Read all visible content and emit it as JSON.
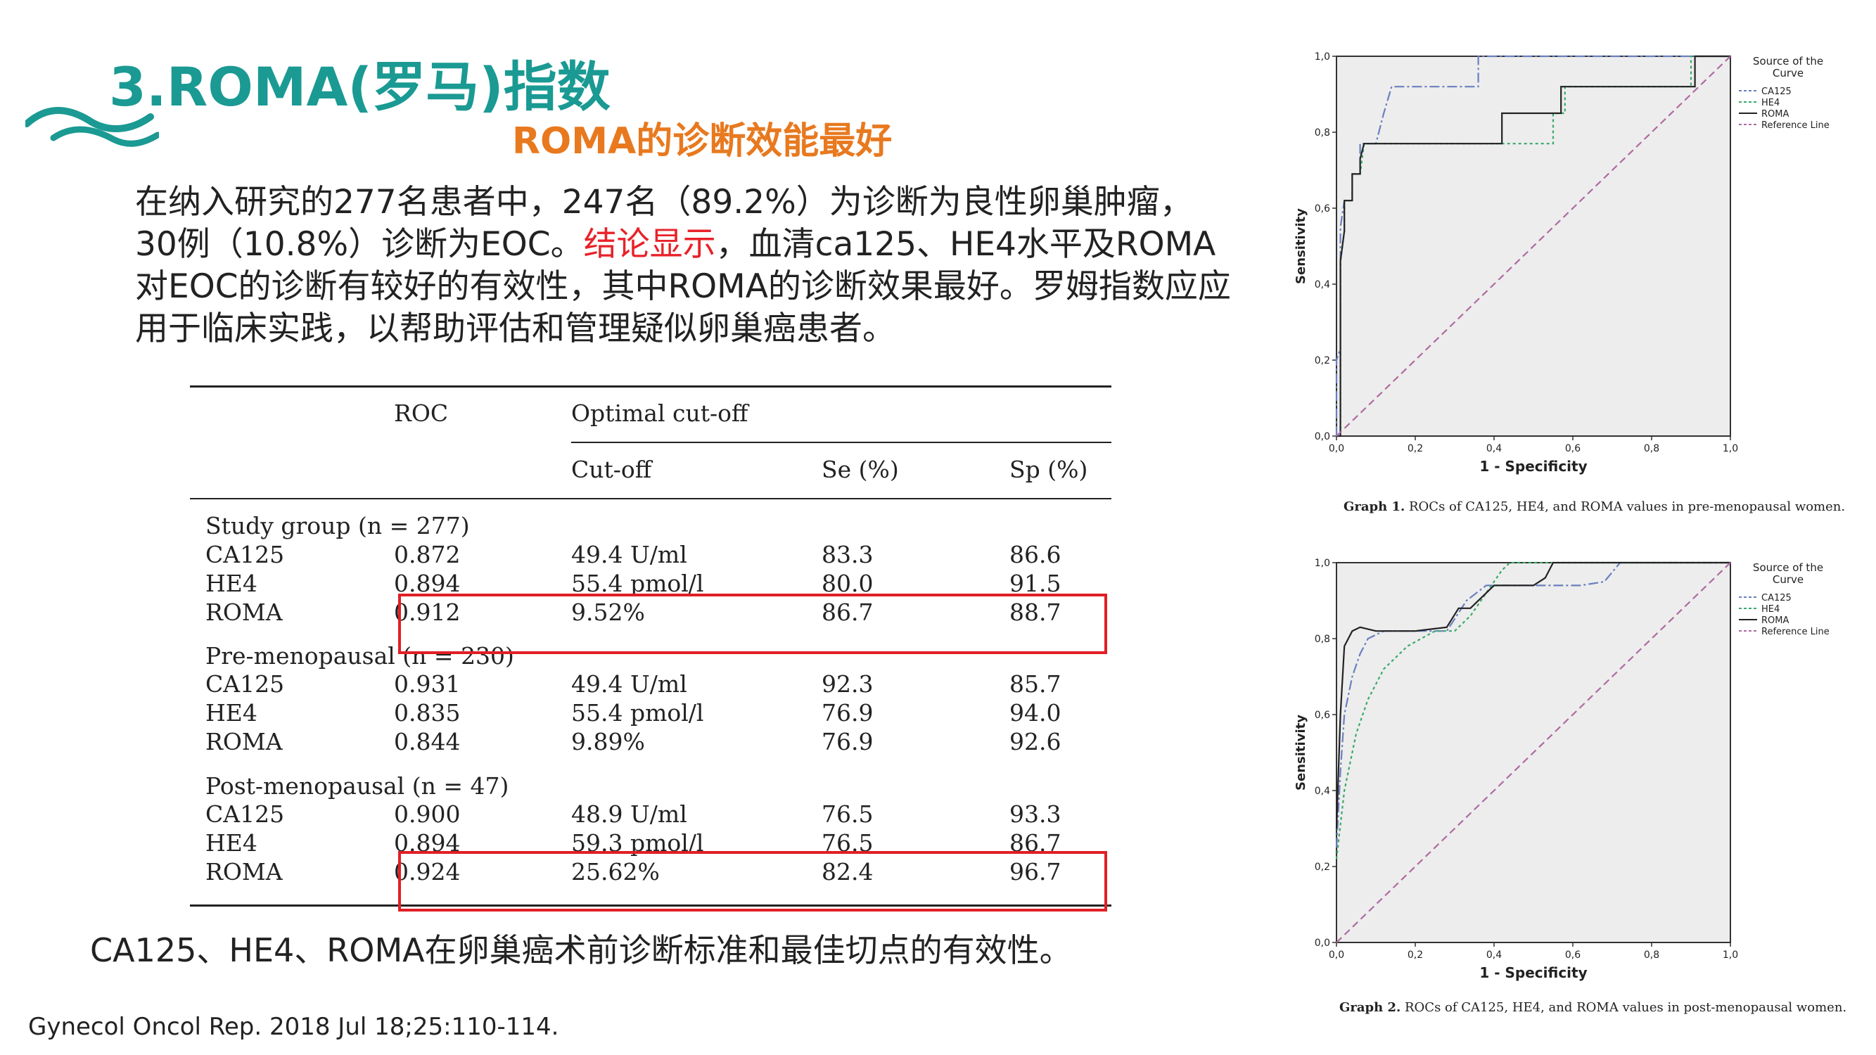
{
  "title": "3.ROMA(罗马)指数",
  "subtitle": "ROMA的诊断效能最好",
  "paragraph": {
    "part1": "在纳入研究的277名患者中，247名（89.2%）为诊断为良性卵巢肿瘤，30例（10.8%）诊断为EOC。",
    "highlight": "结论显示",
    "part2": "，血清ca125、HE4水平及ROMA对EOC的诊断有较好的有效性，其中ROMA的诊断效果最好。罗姆指数应应用于临床实践，以帮助评估和管理疑似卵巢癌患者。"
  },
  "table": {
    "headers": {
      "roc": "ROC",
      "optimal": "Optimal cut-off",
      "cutoff": "Cut-off",
      "se": "Se (%)",
      "sp": "Sp (%)"
    },
    "groups": [
      {
        "label": "Study group (n = 277)",
        "rows": [
          {
            "name": "CA125",
            "roc": "0.872",
            "cutoff": "49.4 U/ml",
            "se": "83.3",
            "sp": "86.6"
          },
          {
            "name": "HE4",
            "roc": "0.894",
            "cutoff": "55.4 pmol/l",
            "se": "80.0",
            "sp": "91.5"
          },
          {
            "name": "ROMA",
            "roc": "0.912",
            "cutoff": "9.52%",
            "se": "86.7",
            "sp": "88.7"
          }
        ]
      },
      {
        "label": "Pre-menopausal (n = 230)",
        "rows": [
          {
            "name": "CA125",
            "roc": "0.931",
            "cutoff": "49.4 U/ml",
            "se": "92.3",
            "sp": "85.7"
          },
          {
            "name": "HE4",
            "roc": "0.835",
            "cutoff": "55.4 pmol/l",
            "se": "76.9",
            "sp": "94.0"
          },
          {
            "name": "ROMA",
            "roc": "0.844",
            "cutoff": "9.89%",
            "se": "76.9",
            "sp": "92.6"
          }
        ]
      },
      {
        "label": "Post-menopausal (n = 47)",
        "rows": [
          {
            "name": "CA125",
            "roc": "0.900",
            "cutoff": "48.9 U/ml",
            "se": "76.5",
            "sp": "93.3"
          },
          {
            "name": "HE4",
            "roc": "0.894",
            "cutoff": "59.3 pmol/l",
            "se": "76.5",
            "sp": "86.7"
          },
          {
            "name": "ROMA",
            "roc": "0.924",
            "cutoff": "25.62%",
            "se": "82.4",
            "sp": "96.7"
          }
        ]
      }
    ]
  },
  "caption": "CA125、HE4、ROMA在卵巢癌术前诊断标准和最佳切点的有效性。",
  "citation": "Gynecol Oncol Rep. 2018 Jul 18;25:110-114.",
  "colors": {
    "teal": "#1a9a93",
    "orange": "#e8791f",
    "red": "#e01f26"
  },
  "chart_data": [
    {
      "type": "line",
      "caption_bold": "Graph 1.",
      "caption_text": "ROCs of CA125, HE4, and ROMA values in pre-menopausal women.",
      "xlabel": "1 - Specificity",
      "ylabel": "Sensitivity",
      "legend_title": "Source of the Curve",
      "legend": [
        "CA125",
        "HE4",
        "ROMA",
        "Reference Line"
      ],
      "xticks": [
        "0,0",
        "0,2",
        "0,4",
        "0,6",
        "0,8",
        "1,0"
      ],
      "yticks": [
        "0,0",
        "0,2",
        "0,4",
        "0,6",
        "0,8",
        "1,0"
      ],
      "xlim": [
        0,
        1
      ],
      "ylim": [
        0,
        1
      ],
      "series": [
        {
          "name": "CA125",
          "color": "#6a7fc0",
          "dash": "14 4 3 4",
          "points": [
            [
              0,
              0
            ],
            [
              0.0,
              0.2
            ],
            [
              0.01,
              0.23
            ],
            [
              0.01,
              0.55
            ],
            [
              0.02,
              0.62
            ],
            [
              0.04,
              0.62
            ],
            [
              0.04,
              0.69
            ],
            [
              0.06,
              0.69
            ],
            [
              0.06,
              0.77
            ],
            [
              0.1,
              0.77
            ],
            [
              0.12,
              0.85
            ],
            [
              0.14,
              0.92
            ],
            [
              0.2,
              0.92
            ],
            [
              0.28,
              0.92
            ],
            [
              0.36,
              0.92
            ],
            [
              0.36,
              1.0
            ],
            [
              1.0,
              1.0
            ]
          ]
        },
        {
          "name": "HE4",
          "color": "#3aa86a",
          "dash": "4 4",
          "points": [
            [
              0,
              0
            ],
            [
              0.01,
              0.0
            ],
            [
              0.01,
              0.46
            ],
            [
              0.02,
              0.54
            ],
            [
              0.02,
              0.62
            ],
            [
              0.04,
              0.62
            ],
            [
              0.04,
              0.69
            ],
            [
              0.06,
              0.69
            ],
            [
              0.07,
              0.77
            ],
            [
              0.5,
              0.77
            ],
            [
              0.55,
              0.77
            ],
            [
              0.55,
              0.85
            ],
            [
              0.58,
              0.85
            ],
            [
              0.58,
              0.92
            ],
            [
              0.9,
              0.92
            ],
            [
              0.9,
              1.0
            ],
            [
              1.0,
              1.0
            ]
          ]
        },
        {
          "name": "ROMA",
          "color": "#222222",
          "dash": "",
          "points": [
            [
              0,
              0
            ],
            [
              0.01,
              0.0
            ],
            [
              0.01,
              0.46
            ],
            [
              0.02,
              0.54
            ],
            [
              0.02,
              0.62
            ],
            [
              0.04,
              0.62
            ],
            [
              0.04,
              0.69
            ],
            [
              0.06,
              0.69
            ],
            [
              0.06,
              0.73
            ],
            [
              0.07,
              0.77
            ],
            [
              0.42,
              0.77
            ],
            [
              0.42,
              0.85
            ],
            [
              0.57,
              0.85
            ],
            [
              0.57,
              0.92
            ],
            [
              0.91,
              0.92
            ],
            [
              0.91,
              1.0
            ],
            [
              1.0,
              1.0
            ]
          ]
        },
        {
          "name": "Reference Line",
          "color": "#b06aa0",
          "dash": "10 6",
          "points": [
            [
              0,
              0
            ],
            [
              1,
              1
            ]
          ]
        }
      ]
    },
    {
      "type": "line",
      "caption_bold": "Graph 2.",
      "caption_text": "ROCs of CA125, HE4, and ROMA values in post-menopausal women.",
      "xlabel": "1 - Specificity",
      "ylabel": "Sensitivity",
      "legend_title": "Source of the Curve",
      "legend": [
        "CA125",
        "HE4",
        "ROMA",
        "Reference Line"
      ],
      "xticks": [
        "0,0",
        "0,2",
        "0,4",
        "0,6",
        "0,8",
        "1,0"
      ],
      "yticks": [
        "0,0",
        "0,2",
        "0,4",
        "0,6",
        "0,8",
        "1,0"
      ],
      "xlim": [
        0,
        1
      ],
      "ylim": [
        0,
        1
      ],
      "series": [
        {
          "name": "CA125",
          "color": "#6a7fc0",
          "dash": "14 4 3 4",
          "points": [
            [
              0,
              0.25
            ],
            [
              0.01,
              0.45
            ],
            [
              0.02,
              0.6
            ],
            [
              0.04,
              0.7
            ],
            [
              0.06,
              0.76
            ],
            [
              0.08,
              0.8
            ],
            [
              0.12,
              0.82
            ],
            [
              0.2,
              0.82
            ],
            [
              0.28,
              0.82
            ],
            [
              0.33,
              0.9
            ],
            [
              0.38,
              0.94
            ],
            [
              0.46,
              0.94
            ],
            [
              0.55,
              0.94
            ],
            [
              0.62,
              0.94
            ],
            [
              0.68,
              0.95
            ],
            [
              0.72,
              1.0
            ],
            [
              1.0,
              1.0
            ]
          ]
        },
        {
          "name": "HE4",
          "color": "#3aa86a",
          "dash": "4 4",
          "points": [
            [
              0,
              0.22
            ],
            [
              0.02,
              0.4
            ],
            [
              0.05,
              0.55
            ],
            [
              0.08,
              0.64
            ],
            [
              0.12,
              0.72
            ],
            [
              0.18,
              0.78
            ],
            [
              0.25,
              0.82
            ],
            [
              0.3,
              0.82
            ],
            [
              0.34,
              0.86
            ],
            [
              0.38,
              0.92
            ],
            [
              0.42,
              0.98
            ],
            [
              0.44,
              1.0
            ],
            [
              1.0,
              1.0
            ]
          ]
        },
        {
          "name": "ROMA",
          "color": "#222222",
          "dash": "",
          "points": [
            [
              0,
              0.3
            ],
            [
              0.01,
              0.6
            ],
            [
              0.02,
              0.78
            ],
            [
              0.04,
              0.82
            ],
            [
              0.06,
              0.83
            ],
            [
              0.1,
              0.82
            ],
            [
              0.2,
              0.82
            ],
            [
              0.28,
              0.83
            ],
            [
              0.31,
              0.88
            ],
            [
              0.34,
              0.88
            ],
            [
              0.4,
              0.94
            ],
            [
              0.5,
              0.94
            ],
            [
              0.53,
              0.96
            ],
            [
              0.55,
              1.0
            ],
            [
              1.0,
              1.0
            ]
          ]
        },
        {
          "name": "Reference Line",
          "color": "#b06aa0",
          "dash": "10 6",
          "points": [
            [
              0,
              0
            ],
            [
              1,
              1
            ]
          ]
        }
      ]
    }
  ]
}
